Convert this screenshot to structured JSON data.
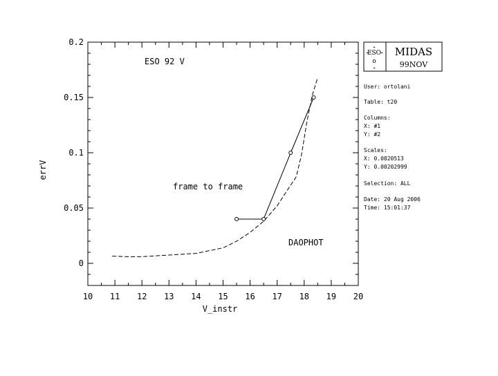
{
  "chart_data": {
    "type": "line",
    "xlabel": "V_instr",
    "ylabel": "errV",
    "xlim": [
      10,
      20
    ],
    "ylim": [
      -0.02,
      0.2
    ],
    "xticks": [
      10,
      11,
      12,
      13,
      14,
      15,
      16,
      17,
      18,
      19,
      20
    ],
    "yticks": [
      0,
      0.05,
      0.1,
      0.15,
      0.2
    ],
    "ytick_labels": [
      "0",
      "0.05",
      "0.1",
      "0.15",
      "0.2"
    ],
    "annotations": {
      "title": "ESO 92 V",
      "frame": "frame to frame",
      "daophot": "DAOPHOT"
    },
    "series": [
      {
        "style": "dashed",
        "x": [
          10.9,
          11.5,
          12.0,
          13.0,
          14.0,
          14.5,
          15.0,
          15.5,
          16.0,
          16.5,
          17.0,
          17.4,
          17.7,
          17.9,
          18.1,
          18.3,
          18.5
        ],
        "y": [
          0.0065,
          0.006,
          0.006,
          0.0075,
          0.009,
          0.0115,
          0.014,
          0.02,
          0.028,
          0.038,
          0.052,
          0.067,
          0.078,
          0.098,
          0.128,
          0.152,
          0.168
        ]
      },
      {
        "style": "solid",
        "marker": "circle",
        "x": [
          15.5,
          16.5,
          17.5,
          18.35
        ],
        "y": [
          0.04,
          0.04,
          0.1,
          0.15
        ]
      }
    ]
  },
  "logo": {
    "name": "MIDAS",
    "version": "99NOV",
    "symbol": "ESO"
  },
  "info": {
    "user": "User: ortolani",
    "table": "Table: t20",
    "columns_label": "Columns:",
    "columns_x": "X: #1",
    "columns_y": "Y: #2",
    "scales_label": "Scales:",
    "scales_x": "X: 0.0820513",
    "scales_y": "Y: 0.00202999",
    "selection": "Selection:  ALL",
    "date": "Date: 20 Aug 2006",
    "time": "Time: 15:01:37"
  }
}
